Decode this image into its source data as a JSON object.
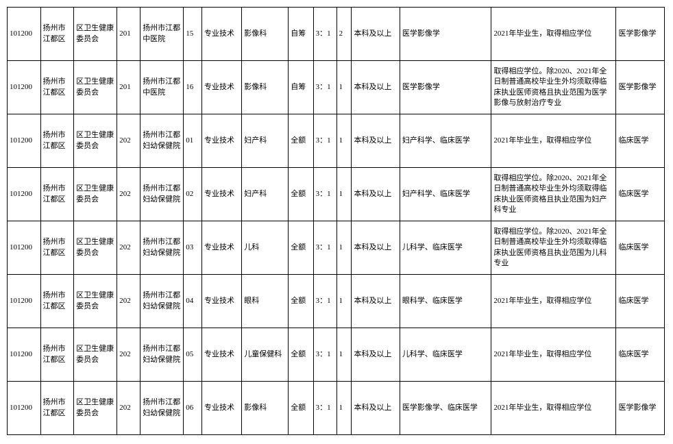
{
  "table": {
    "colClasses": [
      "c0",
      "c1",
      "c2",
      "c3",
      "c4",
      "c5",
      "c6",
      "c7",
      "c8",
      "c9",
      "c10",
      "c11",
      "c12",
      "c13",
      "c14"
    ],
    "rows": [
      {
        "cells": [
          "101200",
          "扬州市江都区",
          "区卫生健康委员会",
          "201",
          "扬州市江都中医院",
          "15",
          "专业技术",
          "影像科",
          "自筹",
          "3：1",
          "2",
          "本科及以上",
          "医学影像学",
          "2021年毕业生，取得相应学位",
          "医学影像学"
        ]
      },
      {
        "cells": [
          "101200",
          "扬州市江都区",
          "区卫生健康委员会",
          "201",
          "扬州市江都中医院",
          "16",
          "专业技术",
          "影像科",
          "自筹",
          "3：1",
          "1",
          "本科及以上",
          "医学影像学",
          "取得相应学位。除2020、2021年全日制普通高校毕业生外均须取得临床执业医师资格且执业范围为医学影像与放射治疗专业",
          "医学影像学"
        ]
      },
      {
        "cells": [
          "101200",
          "扬州市江都区",
          "区卫生健康委员会",
          "202",
          "扬州市江都妇幼保健院",
          "01",
          "专业技术",
          "妇产科",
          "全额",
          "3：1",
          "1",
          "本科及以上",
          "妇产科学、临床医学",
          "2021年毕业生，取得相应学位",
          "临床医学"
        ]
      },
      {
        "cells": [
          "101200",
          "扬州市江都区",
          "区卫生健康委员会",
          "202",
          "扬州市江都妇幼保健院",
          "02",
          "专业技术",
          "妇产科",
          "全额",
          "3：1",
          "1",
          "本科及以上",
          "妇产科学、临床医学",
          "取得相应学位。除2020、2021年全日制普通高校毕业生外均须取得临床执业医师资格且执业范围为妇产科专业",
          "临床医学"
        ]
      },
      {
        "cells": [
          "101200",
          "扬州市江都区",
          "区卫生健康委员会",
          "202",
          "扬州市江都妇幼保健院",
          "03",
          "专业技术",
          "儿科",
          "全额",
          "3：1",
          "1",
          "本科及以上",
          "儿科学、临床医学",
          "取得相应学位。除2020、2021年全日制普通高校毕业生外均须取得临床执业医师资格且执业范围为儿科专业",
          "临床医学"
        ]
      },
      {
        "cells": [
          "101200",
          "扬州市江都区",
          "区卫生健康委员会",
          "202",
          "扬州市江都妇幼保健院",
          "04",
          "专业技术",
          "眼科",
          "全额",
          "3：1",
          "1",
          "本科及以上",
          "眼科学、临床医学",
          "2021年毕业生，取得相应学位",
          "临床医学"
        ]
      },
      {
        "cells": [
          "101200",
          "扬州市江都区",
          "区卫生健康委员会",
          "202",
          "扬州市江都妇幼保健院",
          "05",
          "专业技术",
          "儿童保健科",
          "全额",
          "3：1",
          "1",
          "本科及以上",
          "儿科学、临床医学",
          "2021年毕业生，取得相应学位",
          "临床医学"
        ]
      },
      {
        "cells": [
          "101200",
          "扬州市江都区",
          "区卫生健康委员会",
          "202",
          "扬州市江都妇幼保健院",
          "06",
          "专业技术",
          "影像科",
          "全额",
          "3：1",
          "1",
          "本科及以上",
          "医学影像学、临床医学",
          "2021年毕业生，取得相应学位",
          "医学影像学"
        ]
      }
    ]
  }
}
